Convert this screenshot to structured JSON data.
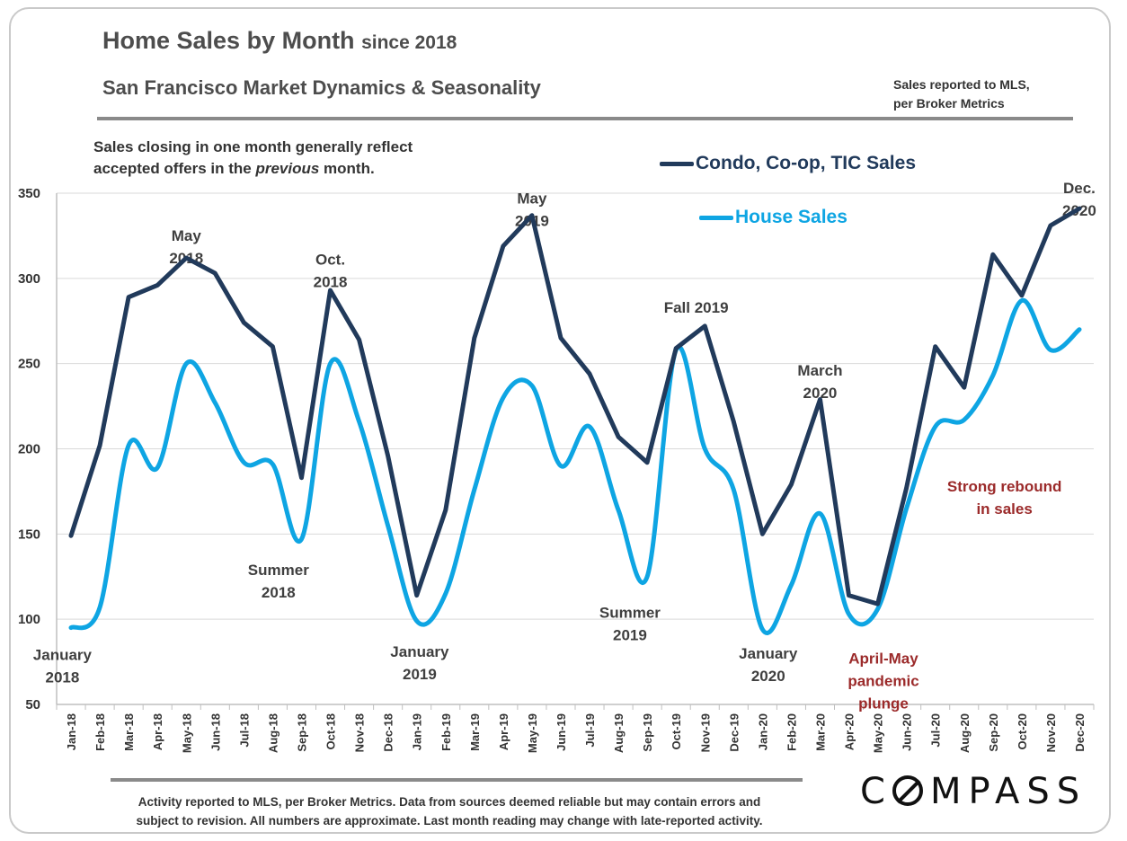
{
  "header": {
    "title": "Home Sales by Month",
    "title_suffix": "since 2018",
    "subtitle": "San Francisco Market Dynamics & Seasonality",
    "source_note": "Sales reported to MLS,\nper Broker Metrics"
  },
  "note": {
    "line1": "Sales closing in one month generally reflect",
    "line2_pre": "accepted offers in the ",
    "line2_em": "previous",
    "line2_post": " month."
  },
  "legend": {
    "condo": "Condo, Co-op, TIC Sales",
    "house": "House Sales"
  },
  "colors": {
    "condo": "#213a5b",
    "house": "#0ea5e3",
    "annotation_dark": "#3f3f3f",
    "annotation_red": "#9b2a2a",
    "grid": "#d9d9d9"
  },
  "chart_data": {
    "type": "line",
    "title": "Home Sales by Month since 2018",
    "ylim": [
      50,
      350
    ],
    "yticks": [
      50,
      100,
      150,
      200,
      250,
      300,
      350
    ],
    "grid": true,
    "legend_position": "top-right",
    "categories": [
      "Jan-18",
      "Feb-18",
      "Mar-18",
      "Apr-18",
      "May-18",
      "Jun-18",
      "Jul-18",
      "Aug-18",
      "Sep-18",
      "Oct-18",
      "Nov-18",
      "Dec-18",
      "Jan-19",
      "Feb-19",
      "Mar-19",
      "Apr-19",
      "May-19",
      "Jun-19",
      "Jul-19",
      "Aug-19",
      "Sep-19",
      "Oct-19",
      "Nov-19",
      "Dec-19",
      "Jan-20",
      "Feb-20",
      "Mar-20",
      "Apr-20",
      "May-20",
      "Jun-20",
      "Jul-20",
      "Aug-20",
      "Sep-20",
      "Oct-20",
      "Nov-20",
      "Dec-20"
    ],
    "series": [
      {
        "name": "Condo, Co-op, TIC Sales",
        "smooth": false,
        "values": [
          149,
          202,
          289,
          296,
          312,
          303,
          274,
          260,
          183,
          293,
          264,
          196,
          114,
          164,
          265,
          319,
          337,
          265,
          244,
          207,
          192,
          259,
          272,
          216,
          150,
          179,
          229,
          114,
          109,
          177,
          260,
          236,
          314,
          290,
          331,
          341
        ]
      },
      {
        "name": "House Sales",
        "smooth": true,
        "values": [
          95,
          107,
          202,
          189,
          250,
          227,
          192,
          191,
          147,
          250,
          216,
          155,
          99,
          115,
          176,
          230,
          237,
          190,
          213,
          164,
          125,
          258,
          200,
          176,
          94,
          120,
          162,
          103,
          106,
          165,
          213,
          217,
          243,
          287,
          258,
          270
        ]
      }
    ],
    "annotations": [
      {
        "text": [
          "May",
          "2018"
        ],
        "style": "dark",
        "cat": 4,
        "value": 322
      },
      {
        "text": [
          "Oct.",
          "2018"
        ],
        "style": "dark",
        "cat": 9,
        "value": 308
      },
      {
        "text": [
          "May",
          "2019"
        ],
        "style": "dark",
        "cat": 16,
        "value": 344
      },
      {
        "text": [
          "Fall 2019"
        ],
        "style": "dark",
        "cat": 21.7,
        "value": 280
      },
      {
        "text": [
          "March",
          "2020"
        ],
        "style": "dark",
        "cat": 26,
        "value": 243
      },
      {
        "text": [
          "Dec.",
          "2020"
        ],
        "style": "dark",
        "cat": 35,
        "value": 350
      },
      {
        "text": [
          "Summer",
          "2018"
        ],
        "style": "dark",
        "cat": 7.2,
        "value": 126
      },
      {
        "text": [
          "Summer",
          "2019"
        ],
        "style": "dark",
        "cat": 19.4,
        "value": 101
      },
      {
        "text": [
          "January",
          "2018"
        ],
        "style": "dark",
        "cat": -0.3,
        "value": 76
      },
      {
        "text": [
          "January",
          "2019"
        ],
        "style": "dark",
        "cat": 12.1,
        "value": 78
      },
      {
        "text": [
          "January",
          "2020"
        ],
        "style": "dark",
        "cat": 24.2,
        "value": 77
      },
      {
        "text": [
          "April-May",
          "pandemic",
          "plunge"
        ],
        "style": "red",
        "cat": 28.2,
        "value": 74
      },
      {
        "text": [
          "Strong rebound",
          "in sales"
        ],
        "style": "red",
        "cat": 32.4,
        "value": 175
      }
    ]
  },
  "footer": {
    "line1": "Activity reported to MLS, per Broker Metrics. Data from sources deemed reliable but may contain errors and",
    "line2": "subject to revision. All numbers are approximate. Last month reading may change with late-reported activity.",
    "logo_pre": "C",
    "logo_post": "MPASS"
  }
}
